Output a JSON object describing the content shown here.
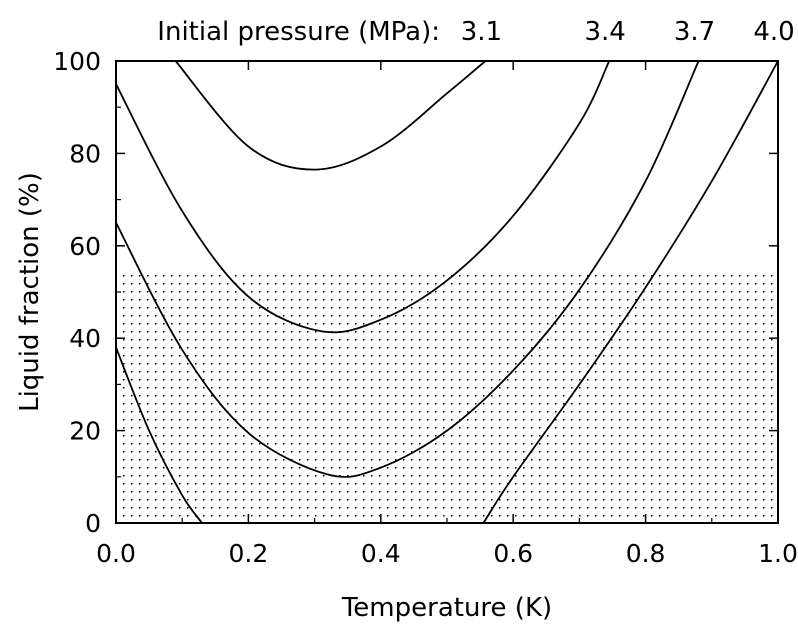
{
  "chart_data": {
    "type": "line",
    "title": "",
    "xlabel": "Temperature (K)",
    "ylabel": "Liquid fraction (%)",
    "xlim": [
      0,
      1.0
    ],
    "ylim": [
      0,
      100
    ],
    "xticks": [
      "0.0",
      "0.2",
      "0.4",
      "0.6",
      "0.8",
      "1.0"
    ],
    "yticks": [
      "0",
      "20",
      "40",
      "60",
      "80",
      "100"
    ],
    "grid": false,
    "legend": {
      "title": "Initial pressure (MPa):",
      "position": "top"
    },
    "shaded_region": {
      "y_from": 0,
      "y_to": 54,
      "pattern": "dots"
    },
    "series": [
      {
        "name": "3.1",
        "x": [
          0.09,
          0.2,
          0.3,
          0.4,
          0.5,
          0.558
        ],
        "y": [
          100,
          81.5,
          76.5,
          81.5,
          93,
          100
        ]
      },
      {
        "name": "3.4",
        "x": [
          0.0,
          0.1,
          0.2,
          0.31,
          0.4,
          0.5,
          0.6,
          0.7,
          0.745
        ],
        "y": [
          95,
          67.5,
          49,
          41.5,
          44,
          52.5,
          66.5,
          86.5,
          100
        ]
      },
      {
        "name": "3.7",
        "x": [
          0.0,
          0.1,
          0.2,
          0.32,
          0.4,
          0.5,
          0.6,
          0.7,
          0.8,
          0.88
        ],
        "y": [
          65,
          37.5,
          19.5,
          10.5,
          12,
          20,
          33,
          50.5,
          74,
          100
        ]
      },
      {
        "name": "4.0",
        "x": [
          0.0,
          0.05,
          0.1,
          0.13
        ],
        "y": [
          38,
          20,
          6,
          0
        ]
      },
      {
        "name": "4.0",
        "x": [
          0.555,
          0.6,
          0.7,
          0.8,
          0.9,
          1.0
        ],
        "y": [
          0,
          10,
          30,
          51,
          74,
          100
        ]
      }
    ]
  }
}
